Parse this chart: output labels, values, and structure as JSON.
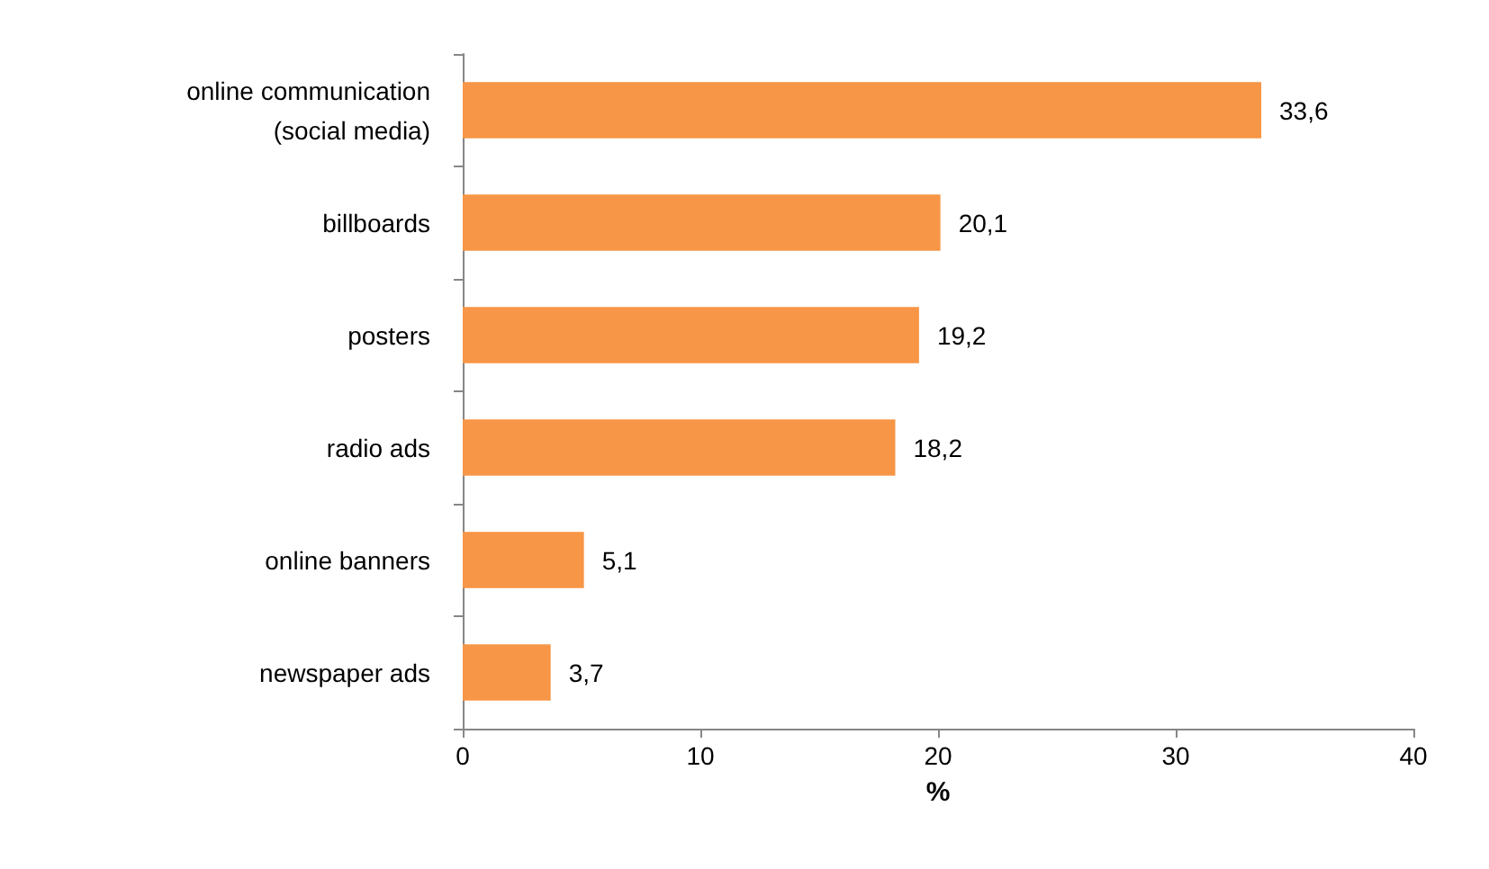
{
  "chart_data": {
    "type": "bar",
    "orientation": "horizontal",
    "xlabel": "%",
    "categories": [
      "online communication\n(social media)",
      "billboards",
      "posters",
      "radio ads",
      "online banners",
      "newspaper ads"
    ],
    "values": [
      33.6,
      20.1,
      19.2,
      18.2,
      5.1,
      3.7
    ],
    "value_labels": [
      "33,6",
      "20,1",
      "19,2",
      "18,2",
      "5,1",
      "3,7"
    ],
    "color": "#f79646",
    "xlim": [
      0,
      40
    ],
    "xticks": [
      0,
      10,
      20,
      30,
      40
    ],
    "grid": false
  }
}
